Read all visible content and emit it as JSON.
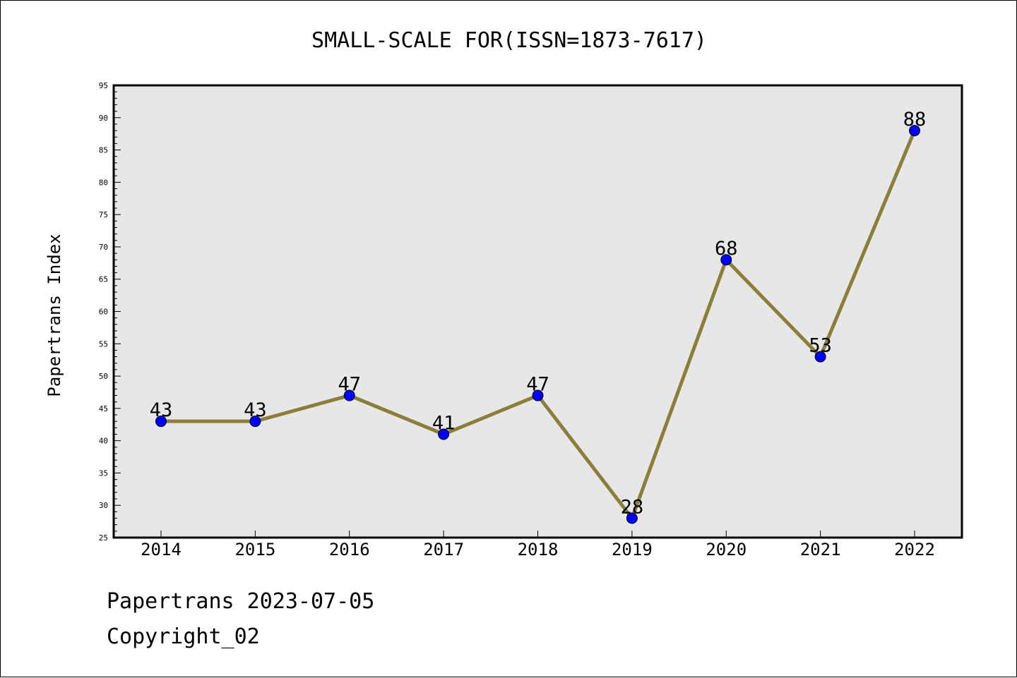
{
  "chart_data": {
    "type": "line",
    "title": "SMALL-SCALE FOR(ISSN=1873-7617)",
    "xlabel": "",
    "ylabel": "Papertrans Index",
    "categories": [
      "2014",
      "2015",
      "2016",
      "2017",
      "2018",
      "2019",
      "2020",
      "2021",
      "2022"
    ],
    "series": [
      {
        "values": [
          43,
          43,
          47,
          41,
          47,
          28,
          68,
          53,
          88
        ]
      }
    ],
    "data_labels": [
      "43",
      "43",
      "47",
      "41",
      "47",
      "28",
      "68",
      "53",
      "88"
    ],
    "ylim": [
      25,
      95
    ],
    "yticks": [
      25,
      30,
      35,
      40,
      45,
      50,
      55,
      60,
      65,
      70,
      75,
      80,
      85,
      90,
      95
    ],
    "grid": false,
    "legend": "none",
    "colors": {
      "line": "#8b7d3a",
      "marker": "#0000ff",
      "plot_background": "#e7e7e7",
      "axes": "#000000"
    }
  },
  "footer": {
    "line1": "Papertrans 2023-07-05",
    "line2": "Copyright_02"
  }
}
